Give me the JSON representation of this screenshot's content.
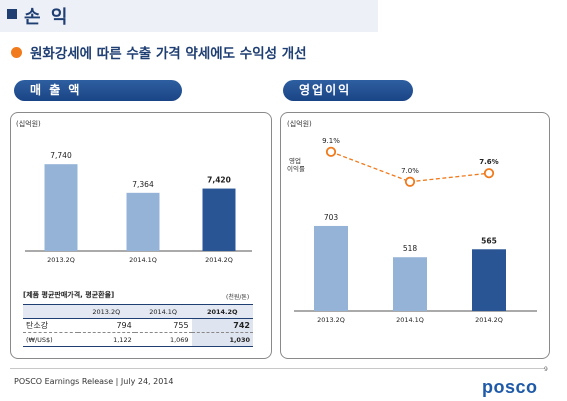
{
  "header": {
    "title": "손 익"
  },
  "subtitle": "원화강세에 따른 수출 가격 약세에도 수익성 개선",
  "sections": {
    "sales_label": "매 출 액",
    "profit_label": "영업이익"
  },
  "unit_left": "(십억원)",
  "unit_right": "(십억원)",
  "margin_label_line1": "영업",
  "margin_label_line2": "이익률",
  "colors": {
    "navy": "#1f3f73",
    "bar_light": "#94b3d7",
    "bar_dark": "#2a5594",
    "line_orange": "#f07a1c"
  },
  "chart_data": [
    {
      "type": "bar",
      "title": "매 출 액",
      "categories": [
        "2013.2Q",
        "2014.1Q",
        "2014.2Q"
      ],
      "values": [
        7740,
        7364,
        7420
      ],
      "value_labels": [
        "7,740",
        "7,364",
        "7,420"
      ],
      "ylim": [
        6600,
        7900
      ],
      "highlight_index": 2
    },
    {
      "type": "bar",
      "title": "영업이익",
      "categories": [
        "2013.2Q",
        "2014.1Q",
        "2014.2Q"
      ],
      "values": [
        703,
        518,
        565
      ],
      "value_labels": [
        "703",
        "518",
        "565"
      ],
      "ylim": [
        200,
        750
      ],
      "highlight_index": 2
    },
    {
      "type": "line",
      "title": "영업 이익률",
      "categories": [
        "2013.2Q",
        "2014.1Q",
        "2014.2Q"
      ],
      "values": [
        9.1,
        7.0,
        7.6
      ],
      "value_labels": [
        "9.1%",
        "7.0%",
        "7.6%"
      ],
      "ylim": [
        6.0,
        10.0
      ],
      "highlight_index": 2
    }
  ],
  "price_table": {
    "title": "[제품 평균판매가격, 평균환율]",
    "unit": "(천원/톤)",
    "headers": [
      "2013.2Q",
      "2014.1Q",
      "2014.2Q"
    ],
    "rows": [
      {
        "label": "탄소강",
        "values": [
          "794",
          "755",
          "742"
        ]
      },
      {
        "label": "(₩/US$)",
        "values": [
          "1,122",
          "1,069",
          "1,030"
        ]
      }
    ]
  },
  "footer": {
    "text": "POSCO Earnings Release  | July 24, 2014",
    "page": "9",
    "logo": "posco"
  }
}
